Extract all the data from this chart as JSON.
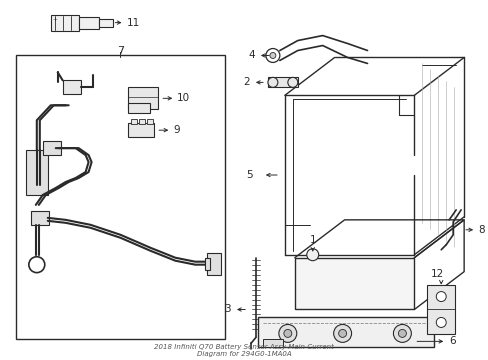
{
  "background_color": "#ffffff",
  "line_color": "#2a2a2a",
  "fig_width": 4.89,
  "fig_height": 3.6,
  "dpi": 100,
  "title": "2018 Infiniti Q70 Battery Sensor Assy-Main Current\nDiagram for 294G0-1MA0A"
}
